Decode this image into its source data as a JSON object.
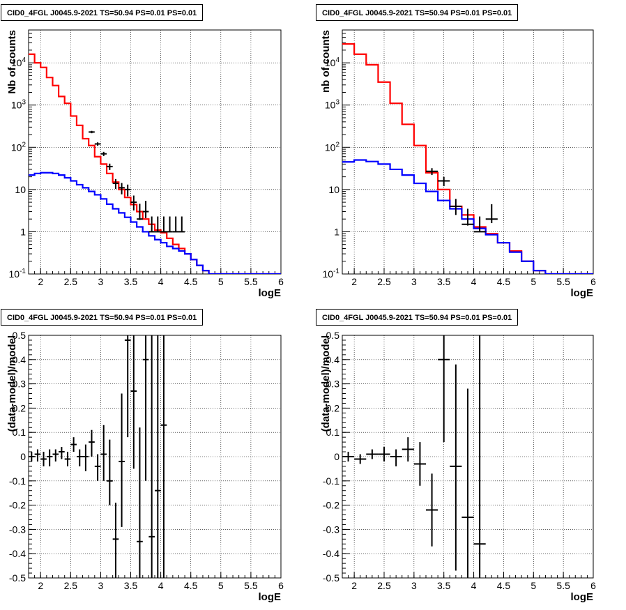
{
  "chart_data": [
    {
      "type": "histogram",
      "title": "CID0_4FGL J0045.9-2021 TS=50.94 PS=0.01 PS=0.01",
      "xlabel": "logE",
      "ylabel": "Nb of counts",
      "xlim": [
        1.8,
        6.0
      ],
      "ylim": [
        0.1,
        60000
      ],
      "yscale": "log",
      "grid": true,
      "xticks": [
        "2",
        "2.5",
        "3",
        "3.5",
        "4",
        "4.5",
        "5",
        "5.5",
        "6"
      ],
      "yticks": [
        "10^-1",
        "1",
        "10",
        "10^2",
        "10^3",
        "10^4"
      ],
      "bin_width": 0.1,
      "series": [
        {
          "color": "#ff0000",
          "bin_low_edges": [
            1.8,
            1.9,
            2.0,
            2.1,
            2.2,
            2.3,
            2.4,
            2.5,
            2.6,
            2.7,
            2.8,
            2.9,
            3.0,
            3.1,
            3.2,
            3.3,
            3.4,
            3.5,
            3.6,
            3.7,
            3.8,
            3.9,
            4.0,
            4.1,
            4.2,
            4.3,
            4.4,
            4.5,
            4.6,
            4.7,
            4.8,
            4.9,
            5.0,
            5.1,
            5.2,
            5.3,
            5.4,
            5.5,
            5.6,
            5.7,
            5.8,
            5.9
          ],
          "values": [
            16000,
            10000,
            7800,
            4500,
            2900,
            1600,
            1100,
            550,
            330,
            160,
            110,
            60,
            40,
            24,
            15,
            10,
            6.5,
            4.4,
            3.0,
            2.0,
            1.5,
            1.1,
            0.95,
            0.7,
            0.5,
            0.4,
            0.3,
            0.22,
            0.16,
            0.12,
            0.1,
            0.1,
            0.1,
            0.1,
            0.1,
            0.1,
            0.1,
            0.1,
            0.1,
            0.1,
            0.1,
            0.1
          ]
        },
        {
          "color": "#0000ff",
          "bin_low_edges": [
            1.8,
            1.9,
            2.0,
            2.1,
            2.2,
            2.3,
            2.4,
            2.5,
            2.6,
            2.7,
            2.8,
            2.9,
            3.0,
            3.1,
            3.2,
            3.3,
            3.4,
            3.5,
            3.6,
            3.7,
            3.8,
            3.9,
            4.0,
            4.1,
            4.2,
            4.3,
            4.4,
            4.5,
            4.6,
            4.7,
            4.8,
            4.9,
            5.0,
            5.1,
            5.2,
            5.3,
            5.4,
            5.5,
            5.6,
            5.7,
            5.8,
            5.9
          ],
          "values": [
            22,
            24,
            25,
            25,
            24,
            22,
            19,
            16,
            13,
            11,
            9,
            7.5,
            6,
            4.5,
            3.5,
            2.8,
            2.2,
            1.7,
            1.3,
            1.0,
            0.8,
            0.65,
            0.55,
            0.45,
            0.4,
            0.35,
            0.3,
            0.22,
            0.16,
            0.12,
            0.1,
            0.1,
            0.1,
            0.1,
            0.1,
            0.1,
            0.1,
            0.1,
            0.1,
            0.1,
            0.1,
            0.1
          ]
        }
      ],
      "points": {
        "color": "#000000",
        "x": [
          2.85,
          2.95,
          3.05,
          3.15,
          3.25,
          3.35,
          3.45,
          3.55,
          3.65,
          3.75,
          3.85,
          3.95,
          4.05,
          4.15,
          4.25,
          4.35
        ],
        "y": [
          230,
          120,
          70,
          35,
          14,
          11,
          10,
          5,
          2,
          3,
          1,
          1,
          1,
          1,
          1,
          1
        ],
        "y_err_low": [
          215,
          109,
          62,
          29,
          10.3,
          7.7,
          6.9,
          3.2,
          1.9,
          2.1,
          0.99,
          0.99,
          0.99,
          0.99,
          0.99,
          0.99
        ],
        "y_err_high": [
          245,
          131,
          78,
          41,
          17.7,
          14.3,
          13.1,
          7.2,
          4.6,
          5.4,
          2.3,
          2.3,
          2.3,
          2.3,
          2.3,
          2.3
        ]
      }
    },
    {
      "type": "histogram",
      "title": "CID0_4FGL J0045.9-2021 TS=50.94 PS=0.01 PS=0.01",
      "xlabel": "logE",
      "ylabel": "nb of counts",
      "xlim": [
        1.8,
        6.0
      ],
      "ylim": [
        0.1,
        60000
      ],
      "yscale": "log",
      "grid": true,
      "xticks": [
        "2",
        "2.5",
        "3",
        "3.5",
        "4",
        "4.5",
        "5",
        "5.5",
        "6"
      ],
      "yticks": [
        "10^-1",
        "1",
        "10",
        "10^2",
        "10^3",
        "10^4"
      ],
      "bin_width": 0.2,
      "series": [
        {
          "color": "#ff0000",
          "bin_low_edges": [
            1.8,
            2.0,
            2.2,
            2.4,
            2.6,
            2.8,
            3.0,
            3.2,
            3.4,
            3.6,
            3.8,
            4.0,
            4.2,
            4.4,
            4.6,
            4.8,
            5.0,
            5.2,
            5.4,
            5.6,
            5.8
          ],
          "values": [
            28000,
            16000,
            9000,
            3500,
            1100,
            350,
            110,
            25,
            10,
            4,
            2.5,
            1.3,
            0.9,
            0.55,
            0.35,
            0.2,
            0.12,
            0.1,
            0.1,
            0.1,
            0.1
          ]
        },
        {
          "color": "#0000ff",
          "bin_low_edges": [
            1.8,
            2.0,
            2.2,
            2.4,
            2.6,
            2.8,
            3.0,
            3.2,
            3.4,
            3.6,
            3.8,
            4.0,
            4.2,
            4.4,
            4.6,
            4.8,
            5.0,
            5.2,
            5.4,
            5.6,
            5.8
          ],
          "values": [
            45,
            50,
            46,
            40,
            30,
            22,
            14,
            9,
            5.5,
            3.5,
            2.0,
            1.2,
            0.85,
            0.55,
            0.33,
            0.2,
            0.12,
            0.1,
            0.1,
            0.1,
            0.1
          ]
        }
      ],
      "points": {
        "color": "#000000",
        "x": [
          3.3,
          3.5,
          3.7,
          3.9,
          4.1,
          4.3
        ],
        "y": [
          27,
          16,
          4,
          1.5,
          1,
          2
        ],
        "y_err_low": [
          22,
          12,
          2.5,
          1.4,
          0.99,
          1.6
        ],
        "y_err_high": [
          32,
          20,
          6,
          3.5,
          2.3,
          4.5
        ]
      }
    },
    {
      "type": "scatter",
      "title": "CID0_4FGL J0045.9-2021 TS=50.94 PS=0.01 PS=0.01",
      "xlabel": "logE",
      "ylabel": "(data-model)/model",
      "xlim": [
        1.8,
        6.0
      ],
      "ylim": [
        -0.5,
        0.5
      ],
      "grid": true,
      "xticks": [
        "2",
        "2.5",
        "3",
        "3.5",
        "4",
        "4.5",
        "5",
        "5.5",
        "6"
      ],
      "yticks": [
        "-0.5",
        "-0.4",
        "-0.3",
        "-0.2",
        "-0.1",
        "0",
        "0.1",
        "0.2",
        "0.3",
        "0.4",
        "0.5"
      ],
      "x_err": 0.05,
      "points": {
        "color": "#000000",
        "x": [
          1.85,
          1.95,
          2.05,
          2.15,
          2.25,
          2.35,
          2.45,
          2.55,
          2.65,
          2.75,
          2.85,
          2.95,
          3.05,
          3.15,
          3.25,
          3.35,
          3.45,
          3.55,
          3.65,
          3.75,
          3.85,
          3.95,
          4.05
        ],
        "y": [
          0.0,
          0.01,
          -0.01,
          0.0,
          0.01,
          0.02,
          -0.01,
          0.05,
          0.0,
          0.0,
          0.06,
          -0.04,
          0.01,
          -0.1,
          -0.34,
          -0.02,
          0.48,
          0.27,
          -0.35,
          0.4,
          -0.33,
          -0.14,
          0.13
        ],
        "y_err_low": [
          -0.02,
          -0.02,
          -0.04,
          -0.04,
          -0.02,
          -0.01,
          -0.04,
          0.02,
          -0.04,
          -0.06,
          0.0,
          -0.1,
          -0.1,
          -0.2,
          -0.5,
          -0.29,
          0.08,
          -0.05,
          -0.5,
          -0.1,
          -0.5,
          -0.5,
          -0.5
        ],
        "y_err_high": [
          0.02,
          0.03,
          0.02,
          0.03,
          0.03,
          0.04,
          0.02,
          0.08,
          0.03,
          0.05,
          0.11,
          0.01,
          0.13,
          0.07,
          -0.19,
          0.26,
          0.5,
          0.5,
          0.12,
          0.5,
          0.5,
          0.5,
          0.5
        ]
      }
    },
    {
      "type": "scatter",
      "title": "CID0_4FGL J0045.9-2021 TS=50.94 PS=0.01 PS=0.01",
      "xlabel": "logE",
      "ylabel": "(data-model)/model",
      "xlim": [
        1.8,
        6.0
      ],
      "ylim": [
        -0.5,
        0.5
      ],
      "grid": true,
      "xticks": [
        "2",
        "2.5",
        "3",
        "3.5",
        "4",
        "4.5",
        "5",
        "5.5",
        "6"
      ],
      "yticks": [
        "-0.5",
        "-0.4",
        "-0.3",
        "-0.2",
        "-0.1",
        "0",
        "0.1",
        "0.2",
        "0.3",
        "0.4",
        "0.5"
      ],
      "x_err": 0.1,
      "points": {
        "color": "#000000",
        "x": [
          1.9,
          2.1,
          2.3,
          2.5,
          2.7,
          2.9,
          3.1,
          3.3,
          3.5,
          3.7,
          3.9,
          4.1
        ],
        "y": [
          0.0,
          -0.01,
          0.01,
          0.01,
          0.0,
          0.03,
          -0.03,
          -0.22,
          0.4,
          -0.04,
          -0.25,
          -0.36
        ],
        "y_err_low": [
          -0.02,
          -0.03,
          -0.01,
          -0.02,
          -0.04,
          -0.02,
          -0.12,
          -0.37,
          0.06,
          -0.47,
          -0.5,
          -0.5
        ],
        "y_err_high": [
          0.02,
          0.01,
          0.03,
          0.04,
          0.03,
          0.08,
          0.06,
          -0.07,
          0.5,
          0.38,
          0.28,
          0.5
        ]
      }
    }
  ]
}
